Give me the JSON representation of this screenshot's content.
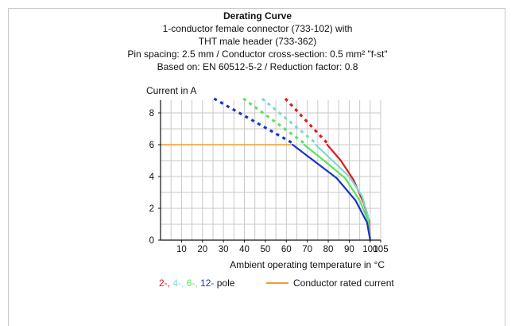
{
  "chart_data": {
    "type": "line",
    "title": "Derating Curve",
    "subtitle_lines": [
      "1-conductor female connector (733-102) with",
      "THT male header (733-362)",
      "Pin spacing: 2.5 mm / Conductor cross-section: 0.5 mm² \"f-st\"",
      "Based on: EN 60512-5-2 / Reduction factor: 0.8"
    ],
    "ylabel": "Current in A",
    "xlabel": "Ambient operating temperature in °C",
    "x_ticks": [
      10,
      20,
      30,
      40,
      50,
      60,
      70,
      80,
      90,
      100,
      105
    ],
    "y_ticks": [
      0,
      2,
      4,
      6,
      8
    ],
    "xlim": [
      0,
      105
    ],
    "ylim": [
      0,
      8.8
    ],
    "grid": true,
    "series": [
      {
        "name": "2-",
        "color": "#e3191b",
        "dashed": [
          [
            59.5,
            8.9
          ],
          [
            79.5,
            6.1
          ]
        ],
        "solid": [
          [
            79.5,
            6.0
          ],
          [
            86,
            5.0
          ],
          [
            92,
            3.8
          ],
          [
            97,
            2.3
          ],
          [
            99.5,
            1.2
          ],
          [
            100,
            0
          ]
        ]
      },
      {
        "name": "4-",
        "color": "#7fd9d0",
        "dashed": [
          [
            48.5,
            8.9
          ],
          [
            74,
            6.1
          ]
        ],
        "solid": [
          [
            74,
            6.0
          ],
          [
            82,
            5.0
          ],
          [
            90,
            4.0
          ],
          [
            96,
            2.8
          ],
          [
            99,
            1.5
          ],
          [
            100,
            0
          ]
        ]
      },
      {
        "name": "6-",
        "color": "#5ee35c",
        "dashed": [
          [
            39.5,
            8.9
          ],
          [
            68.5,
            6.1
          ]
        ],
        "solid": [
          [
            68.5,
            6.0
          ],
          [
            78,
            5.0
          ],
          [
            88,
            3.9
          ],
          [
            95,
            2.5
          ],
          [
            99,
            1.2
          ],
          [
            100,
            0
          ]
        ]
      },
      {
        "name": "12-",
        "color": "#1b33c7",
        "dashed": [
          [
            25.5,
            8.9
          ],
          [
            63,
            6.1
          ]
        ],
        "solid": [
          [
            63,
            6.0
          ],
          [
            73,
            5.0
          ],
          [
            84,
            3.9
          ],
          [
            93,
            2.5
          ],
          [
            98.5,
            1.1
          ],
          [
            100,
            0
          ]
        ]
      }
    ],
    "rated_current": {
      "name": "Conductor rated current",
      "value": 6,
      "x_range": [
        0,
        63
      ],
      "color": "#f39b31"
    },
    "legend": {
      "pole_suffix": "pole",
      "placement": "bottom"
    }
  }
}
